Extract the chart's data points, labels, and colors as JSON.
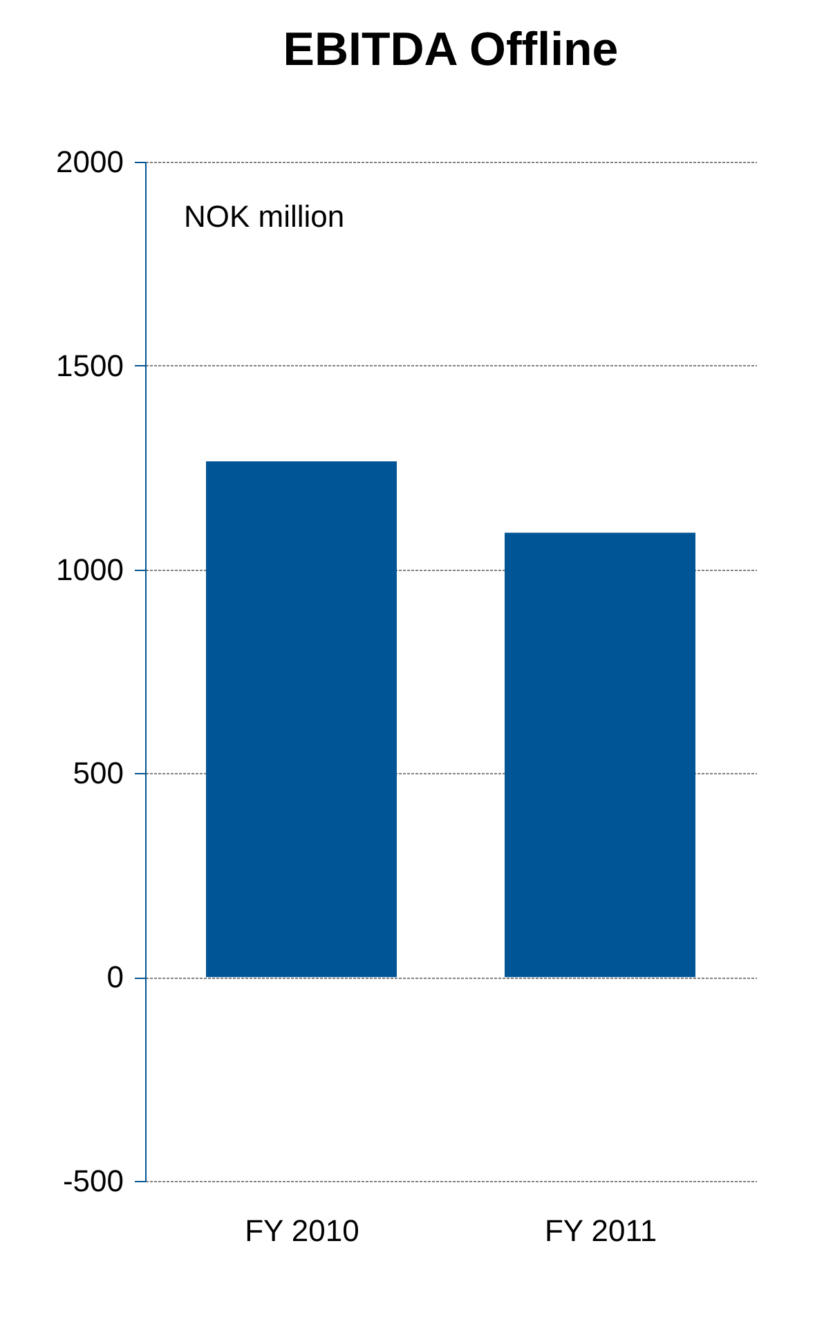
{
  "chart_data": {
    "type": "bar",
    "title": "EBITDA Offline",
    "categories": [
      "FY 2010",
      "FY 2011"
    ],
    "values": [
      1265,
      1090
    ],
    "color": "#005596",
    "ylim": [
      -500,
      2000
    ],
    "yticks": [
      -500,
      0,
      500,
      1000,
      1500,
      2000
    ],
    "grid": "y",
    "annotations": [
      {
        "text": "NOK million"
      }
    ]
  }
}
